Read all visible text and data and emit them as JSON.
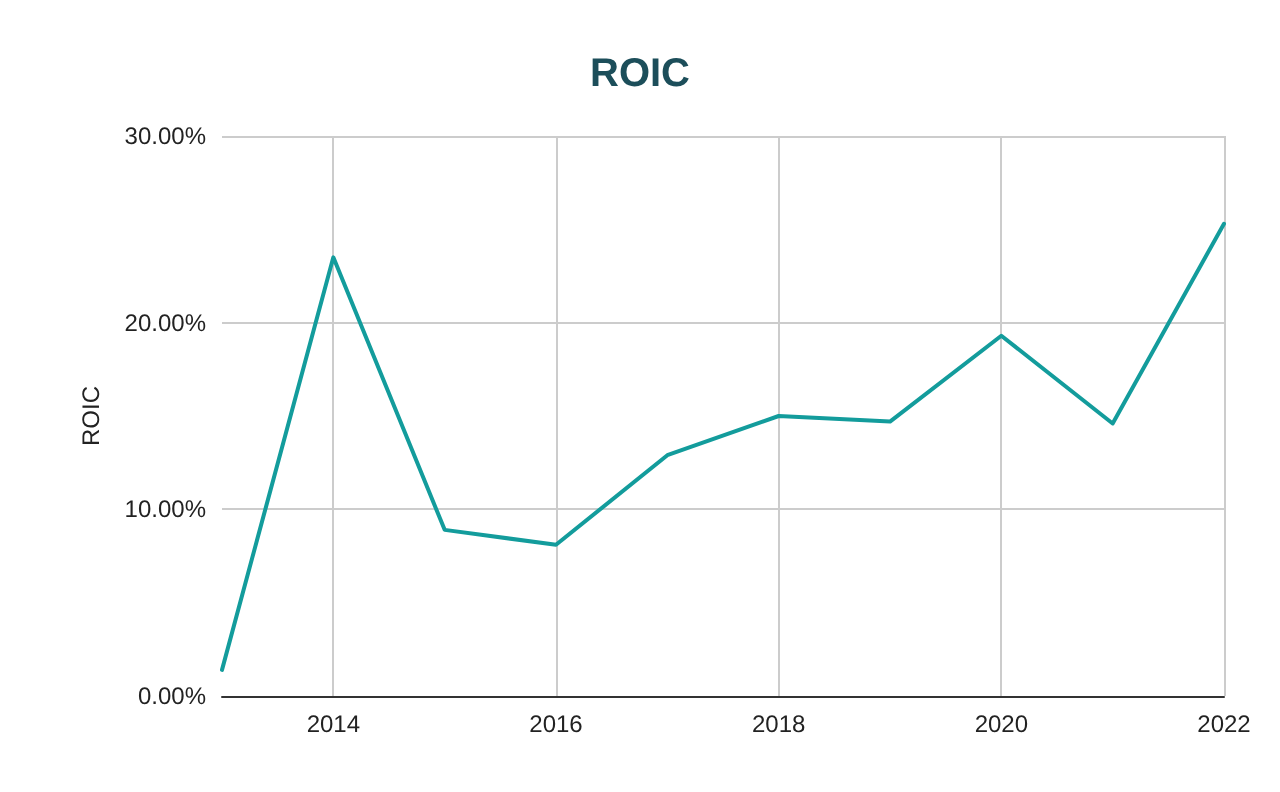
{
  "chart_data": {
    "type": "line",
    "title": "ROIC",
    "ylabel": "ROIC",
    "x": [
      2013,
      2014,
      2015,
      2016,
      2017,
      2018,
      2019,
      2020,
      2021,
      2022
    ],
    "series": [
      {
        "color": "#139c9c",
        "values": [
          1.4,
          23.5,
          8.9,
          8.1,
          12.9,
          15.0,
          14.7,
          19.3,
          14.6,
          25.3
        ]
      }
    ],
    "xlim": [
      2013,
      2022
    ],
    "xticks": [
      2014,
      2016,
      2018,
      2020,
      2022
    ],
    "ylim": [
      0,
      30
    ],
    "yticks": [
      {
        "value": 0,
        "label": "0.00%"
      },
      {
        "value": 10,
        "label": "10.00%"
      },
      {
        "value": 20,
        "label": "20.00%"
      },
      {
        "value": 30,
        "label": "30.00%"
      }
    ],
    "grid": true,
    "marker": "none",
    "line_style": "solid"
  }
}
